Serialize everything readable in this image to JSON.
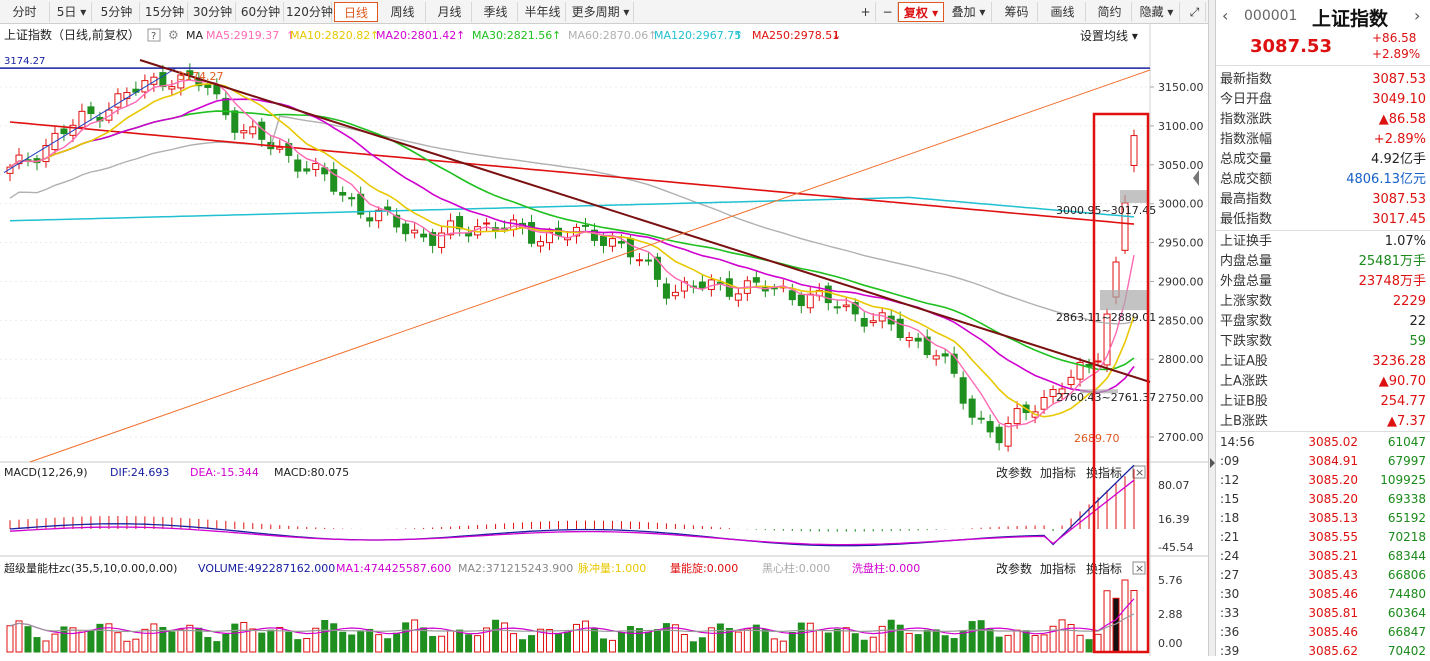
{
  "toolbar": {
    "periods": [
      "分时",
      "5日",
      "5分钟",
      "15分钟",
      "30分钟",
      "60分钟",
      "120分钟",
      "日线",
      "周线",
      "月线",
      "季线",
      "半年线",
      "更多周期"
    ],
    "active_period": "日线",
    "right_buttons": [
      "+",
      "−",
      "复权",
      "叠加",
      "筹码",
      "画线",
      "简约",
      "隐藏"
    ]
  },
  "chart": {
    "title": "上证指数（日线,前复权）",
    "ma_label": "MA",
    "ma_values": [
      {
        "label": "MA5:2919.37",
        "color": "#ff69b4"
      },
      {
        "label": "MA10:2820.82",
        "color": "#e8c800"
      },
      {
        "label": "MA20:2801.42",
        "color": "#d000d0"
      },
      {
        "label": "MA30:2821.56",
        "color": "#1fc01f"
      },
      {
        "label": "MA60:2870.06",
        "color": "#b0b0b0"
      },
      {
        "label": "MA120:2967.75",
        "color": "#20c0d0"
      },
      {
        "label": "MA250:2978.51",
        "color": "#e01010"
      }
    ],
    "set_ma": "设置均线",
    "price_axis": [
      "3150.00",
      "3100.00",
      "3050.00",
      "3000.00",
      "2950.00",
      "2900.00",
      "2850.00",
      "2800.00",
      "2750.00",
      "2700.00"
    ],
    "annotations": {
      "high_left": "3174.27",
      "high_mark": "3174.27",
      "low_mark": "2689.70",
      "box1": "3000.95~3017.45",
      "box2": "2863.11~2889.01",
      "box3": "2760.43~2761.37"
    },
    "macd": {
      "label": "MACD(12,26,9)",
      "dif": "DIF:24.693",
      "dea": "DEA:-15.344",
      "macd": "MACD:80.075",
      "axis": [
        "80.07",
        "16.39",
        "-45.54"
      ],
      "buttons": [
        "改参数",
        "加指标",
        "换指标"
      ]
    },
    "volume": {
      "label": "超级量能柱zc(35,5,10,0.00,0.00)",
      "volume": "VOLUME:492287162.000",
      "ma1": "MA1:474425587.600",
      "ma2": "MA2:371215243.900",
      "extra1": "脉冲量:1.000",
      "extra2": "量能旋:0.000",
      "extra3": "黑心柱:0.000",
      "extra4": "洗盘柱:0.000",
      "axis": [
        "5.76",
        "2.88",
        "0.00"
      ],
      "buttons": [
        "改参数",
        "加指标",
        "换指标"
      ]
    }
  },
  "panel": {
    "code": "000001",
    "name": "上证指数",
    "price": "3087.53",
    "change": "+86.58",
    "change_pct": "+2.89%",
    "rows": [
      {
        "k": "最新指数",
        "v": "3087.53",
        "c": "#d11"
      },
      {
        "k": "今日开盘",
        "v": "3049.10",
        "c": "#d11"
      },
      {
        "k": "指数涨跌",
        "v": "▲86.58",
        "c": "#d11"
      },
      {
        "k": "指数涨幅",
        "v": "+2.89%",
        "c": "#d11"
      },
      {
        "k": "总成交量",
        "v": "4.92亿手",
        "c": "#222"
      },
      {
        "k": "总成交额",
        "v": "4806.13亿元",
        "c": "#1560c8"
      },
      {
        "k": "最高指数",
        "v": "3087.53",
        "c": "#d11"
      },
      {
        "k": "最低指数",
        "v": "3017.45",
        "c": "#d11"
      },
      {
        "k": "上证换手",
        "v": "1.07%",
        "c": "#222"
      },
      {
        "k": "内盘总量",
        "v": "25481万手",
        "c": "#1a8a1a"
      },
      {
        "k": "外盘总量",
        "v": "23748万手",
        "c": "#d11"
      },
      {
        "k": "上涨家数",
        "v": "2229",
        "c": "#d11"
      },
      {
        "k": "平盘家数",
        "v": "22",
        "c": "#222"
      },
      {
        "k": "下跌家数",
        "v": "59",
        "c": "#1a8a1a"
      },
      {
        "k": "上证A股",
        "v": "3236.28",
        "c": "#d11"
      },
      {
        "k": "上A涨跌",
        "v": "▲90.70",
        "c": "#d11"
      },
      {
        "k": "上证B股",
        "v": "254.77",
        "c": "#d11"
      },
      {
        "k": "上B涨跌",
        "v": "▲7.37",
        "c": "#d11"
      }
    ],
    "ticks": [
      {
        "t": "14:56",
        "p": "3085.02",
        "q": "61047"
      },
      {
        "t": ":09",
        "p": "3084.91",
        "q": "67997"
      },
      {
        "t": ":12",
        "p": "3085.20",
        "q": "109925"
      },
      {
        "t": ":15",
        "p": "3085.20",
        "q": "69338"
      },
      {
        "t": ":18",
        "p": "3085.13",
        "q": "65192"
      },
      {
        "t": ":21",
        "p": "3085.55",
        "q": "70218"
      },
      {
        "t": ":24",
        "p": "3085.21",
        "q": "68344"
      },
      {
        "t": ":27",
        "p": "3085.43",
        "q": "66806"
      },
      {
        "t": ":30",
        "p": "3085.46",
        "q": "74480"
      },
      {
        "t": ":33",
        "p": "3085.81",
        "q": "60364"
      },
      {
        "t": ":36",
        "p": "3085.46",
        "q": "66847"
      },
      {
        "t": ":39",
        "p": "3085.62",
        "q": "70402"
      }
    ]
  }
}
